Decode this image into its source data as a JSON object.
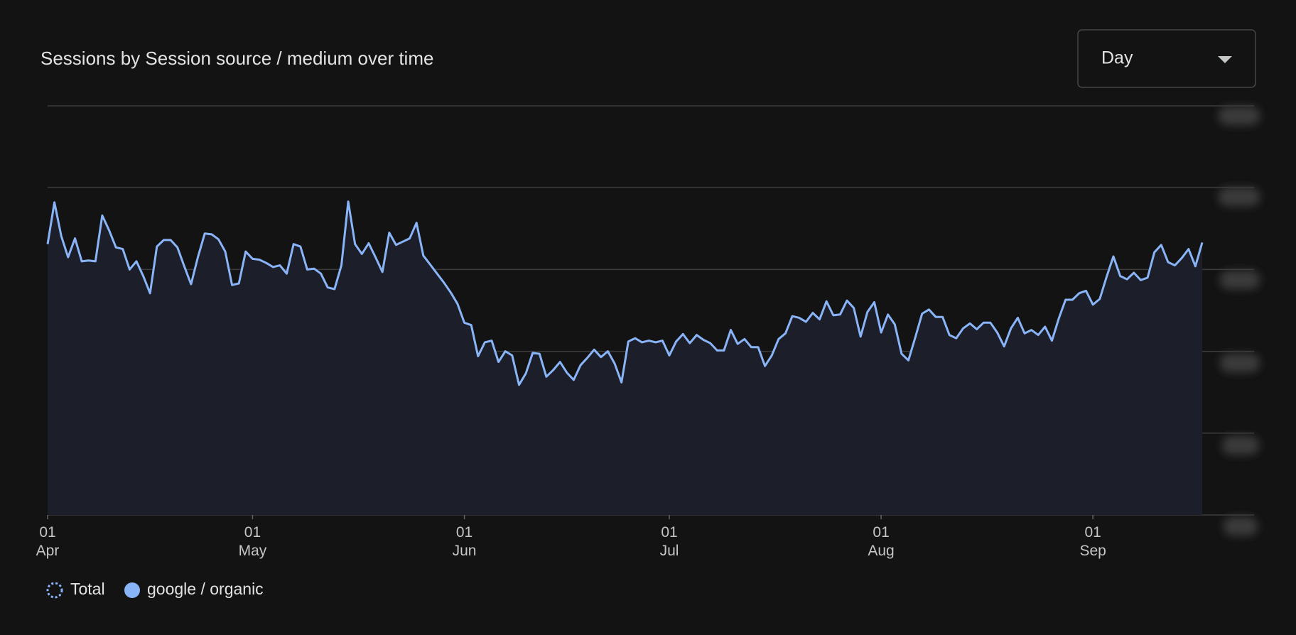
{
  "chart_data": {
    "type": "line",
    "title": "Sessions by Session source / medium over time",
    "dropdown": "Day",
    "total_label": "Total",
    "categories": [
      "01 Apr",
      null,
      null,
      null,
      null,
      null,
      null,
      null,
      null,
      null,
      null,
      null,
      null,
      null,
      null,
      null,
      null,
      null,
      null,
      null,
      null,
      null,
      null,
      null,
      null,
      null,
      null,
      null,
      null,
      null,
      "01 May",
      null,
      null,
      null,
      null,
      null,
      null,
      null,
      null,
      null,
      null,
      null,
      null,
      null,
      null,
      null,
      null,
      null,
      null,
      null,
      null,
      null,
      null,
      null,
      null,
      null,
      null,
      null,
      null,
      null,
      null,
      "01 Jun",
      null,
      null,
      null,
      null,
      null,
      null,
      null,
      null,
      null,
      null,
      null,
      null,
      null,
      null,
      null,
      null,
      null,
      null,
      null,
      null,
      null,
      null,
      null,
      null,
      null,
      null,
      null,
      null,
      null,
      "01 Jul",
      null,
      null,
      null,
      null,
      null,
      null,
      null,
      null,
      null,
      null,
      null,
      null,
      null,
      null,
      null,
      null,
      null,
      null,
      null,
      null,
      null,
      null,
      null,
      null,
      null,
      null,
      null,
      null,
      null,
      null,
      "01 Aug",
      null,
      null,
      null,
      null,
      null,
      null,
      null,
      null,
      null,
      null,
      null,
      null,
      null,
      null,
      null,
      null,
      null,
      null,
      null,
      null,
      null,
      null,
      null,
      null,
      null,
      null,
      null,
      null,
      null,
      null,
      "01 Sep",
      null,
      null,
      null,
      null,
      null,
      null,
      null,
      null,
      null,
      null,
      null,
      null,
      null,
      null,
      null,
      null
    ],
    "series": [
      {
        "name": "google / organic",
        "color": "#8ab4f8",
        "values": [
          3.31,
          3.82,
          3.41,
          3.15,
          3.38,
          3.1,
          3.11,
          3.1,
          3.66,
          3.48,
          3.27,
          3.25,
          3.0,
          3.1,
          2.92,
          2.71,
          3.28,
          3.36,
          3.36,
          3.27,
          3.04,
          2.82,
          3.15,
          3.44,
          3.43,
          3.37,
          3.22,
          2.81,
          2.83,
          3.22,
          3.13,
          3.12,
          3.08,
          3.03,
          3.05,
          2.95,
          3.31,
          3.28,
          3.0,
          3.01,
          2.95,
          2.78,
          2.76,
          3.05,
          3.83,
          3.31,
          3.19,
          3.32,
          3.15,
          2.97,
          3.45,
          3.3,
          3.34,
          3.38,
          3.57,
          3.17,
          3.06,
          2.95,
          2.84,
          2.72,
          2.58,
          2.35,
          2.32,
          1.94,
          2.11,
          2.13,
          1.87,
          2.0,
          1.95,
          1.59,
          1.73,
          1.98,
          1.97,
          1.69,
          1.77,
          1.87,
          1.74,
          1.65,
          1.83,
          1.92,
          2.02,
          1.93,
          2.0,
          1.85,
          1.62,
          2.12,
          2.16,
          2.11,
          2.13,
          2.11,
          2.13,
          1.95,
          2.12,
          2.21,
          2.1,
          2.2,
          2.14,
          2.1,
          2.01,
          2.01,
          2.26,
          2.09,
          2.15,
          2.05,
          2.05,
          1.82,
          1.95,
          2.15,
          2.22,
          2.43,
          2.41,
          2.36,
          2.47,
          2.39,
          2.61,
          2.44,
          2.45,
          2.62,
          2.53,
          2.18,
          2.48,
          2.6,
          2.23,
          2.45,
          2.33,
          1.97,
          1.89,
          2.17,
          2.46,
          2.51,
          2.42,
          2.42,
          2.2,
          2.16,
          2.28,
          2.34,
          2.27,
          2.35,
          2.35,
          2.23,
          2.06,
          2.28,
          2.41,
          2.22,
          2.26,
          2.2,
          2.3,
          2.13,
          2.4,
          2.63,
          2.63,
          2.71,
          2.74,
          2.57,
          2.64,
          2.91,
          3.16,
          2.92,
          2.88,
          2.96,
          2.87,
          2.9,
          3.21,
          3.3,
          3.09,
          3.05,
          3.14,
          3.25,
          3.04,
          3.33
        ]
      }
    ],
    "ylim": [
      0,
      5
    ],
    "yticks": [
      0,
      1,
      2,
      3,
      4,
      5
    ],
    "grid": true
  }
}
